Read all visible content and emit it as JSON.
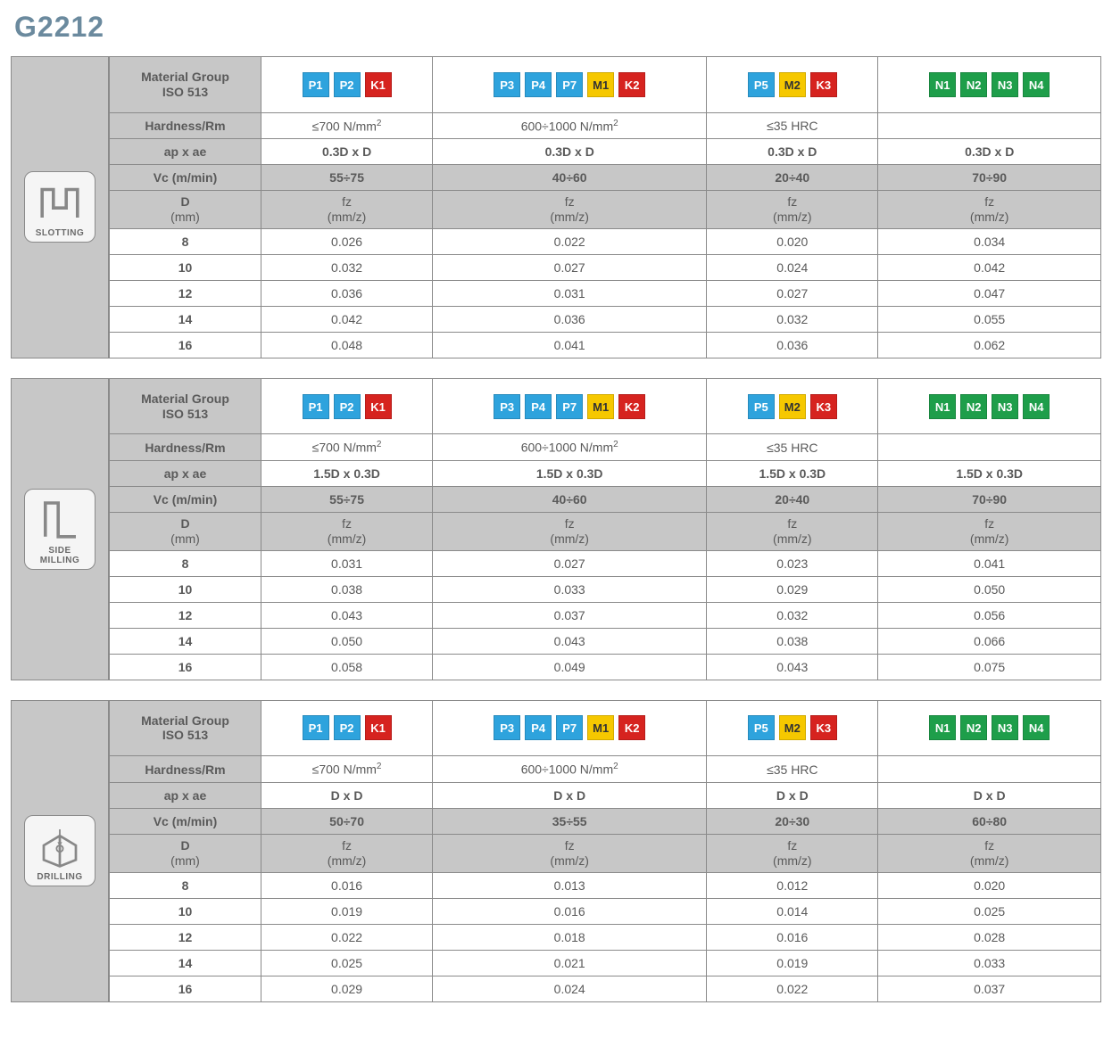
{
  "title": "G2212",
  "colors": {
    "heading": "#6b8a9e",
    "grey_bg": "#c7c7c7",
    "border": "#8a8a8a",
    "chip_P": "#2ea3dd",
    "chip_K": "#d6231f",
    "chip_M": "#f6c800",
    "chip_N": "#1e9e4a"
  },
  "common": {
    "material_group_label_l1": "Material Group",
    "material_group_label_l2": "ISO 513",
    "hardness_label": "Hardness/Rm",
    "ap_ae_label": "ap x ae",
    "vc_label": "Vc (m/min)",
    "d_label_l1": "D",
    "d_label_l2": "(mm)",
    "fz_label_l1": "fz",
    "fz_label_l2": "(mm/z)",
    "col1_chips": [
      "P1",
      "P2",
      "K1"
    ],
    "col2_chips": [
      "P3",
      "P4",
      "P7",
      "M1",
      "K2"
    ],
    "col3_chips": [
      "P5",
      "M2",
      "K3"
    ],
    "col4_chips": [
      "N1",
      "N2",
      "N3",
      "N4"
    ],
    "hardness": [
      "≤700 N/mm²",
      "600÷1000 N/mm²",
      "≤35 HRC",
      ""
    ],
    "diameters": [
      "8",
      "10",
      "12",
      "14",
      "16"
    ]
  },
  "sections": [
    {
      "op_name": "SLOTTING",
      "icon": "slotting",
      "ap_ae": [
        "0.3D x D",
        "0.3D x D",
        "0.3D x D",
        "0.3D x D"
      ],
      "vc": [
        "55÷75",
        "40÷60",
        "20÷40",
        "70÷90"
      ],
      "fz": [
        [
          "0.026",
          "0.022",
          "0.020",
          "0.034"
        ],
        [
          "0.032",
          "0.027",
          "0.024",
          "0.042"
        ],
        [
          "0.036",
          "0.031",
          "0.027",
          "0.047"
        ],
        [
          "0.042",
          "0.036",
          "0.032",
          "0.055"
        ],
        [
          "0.048",
          "0.041",
          "0.036",
          "0.062"
        ]
      ]
    },
    {
      "op_name": "SIDE MILLING",
      "icon": "side_milling",
      "ap_ae": [
        "1.5D x 0.3D",
        "1.5D x 0.3D",
        "1.5D x 0.3D",
        "1.5D x 0.3D"
      ],
      "vc": [
        "55÷75",
        "40÷60",
        "20÷40",
        "70÷90"
      ],
      "fz": [
        [
          "0.031",
          "0.027",
          "0.023",
          "0.041"
        ],
        [
          "0.038",
          "0.033",
          "0.029",
          "0.050"
        ],
        [
          "0.043",
          "0.037",
          "0.032",
          "0.056"
        ],
        [
          "0.050",
          "0.043",
          "0.038",
          "0.066"
        ],
        [
          "0.058",
          "0.049",
          "0.043",
          "0.075"
        ]
      ]
    },
    {
      "op_name": "DRILLING",
      "icon": "drilling",
      "ap_ae": [
        "D x D",
        "D x D",
        "D x D",
        "D x D"
      ],
      "vc": [
        "50÷70",
        "35÷55",
        "20÷30",
        "60÷80"
      ],
      "fz": [
        [
          "0.016",
          "0.013",
          "0.012",
          "0.020"
        ],
        [
          "0.019",
          "0.016",
          "0.014",
          "0.025"
        ],
        [
          "0.022",
          "0.018",
          "0.016",
          "0.028"
        ],
        [
          "0.025",
          "0.021",
          "0.019",
          "0.033"
        ],
        [
          "0.029",
          "0.024",
          "0.022",
          "0.037"
        ]
      ]
    }
  ]
}
